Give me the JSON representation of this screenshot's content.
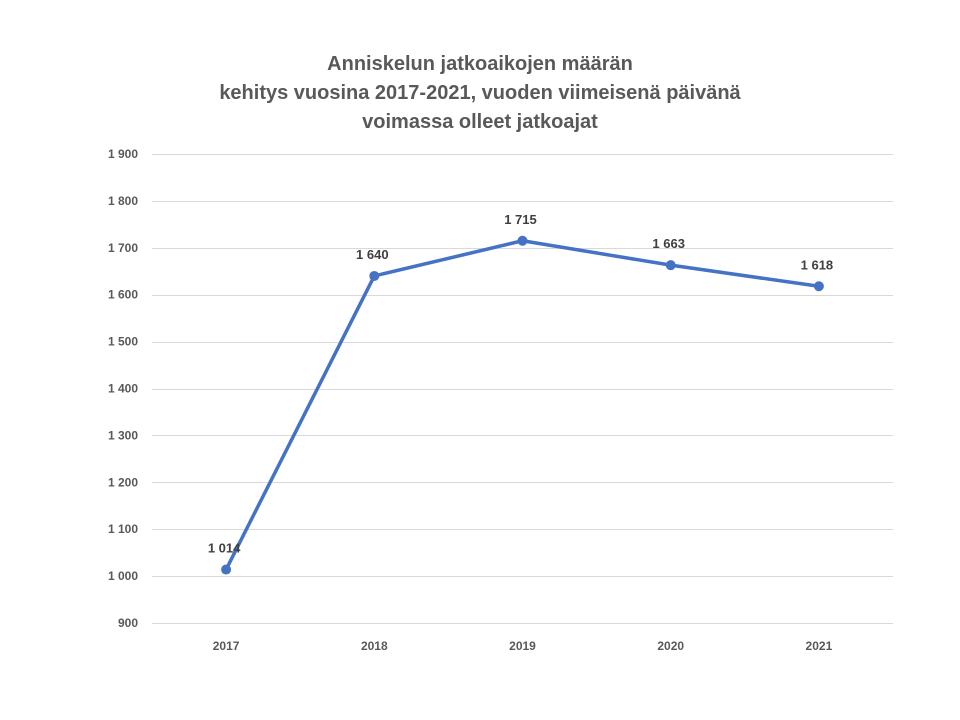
{
  "chart_data": {
    "type": "line",
    "title_lines": [
      "Anniskelun jatkoaikojen määrän",
      "kehitys vuosina 2017-2021, vuoden viimeisenä päivänä",
      "voimassa olleet jatkoajat"
    ],
    "categories": [
      "2017",
      "2018",
      "2019",
      "2020",
      "2021"
    ],
    "values": [
      1014,
      1640,
      1715,
      1663,
      1618
    ],
    "data_labels": [
      "1 014",
      "1 640",
      "1 715",
      "1 663",
      "1 618"
    ],
    "ylim": [
      900,
      1900
    ],
    "yticks": [
      900,
      1000,
      1100,
      1200,
      1300,
      1400,
      1500,
      1600,
      1700,
      1800,
      1900
    ],
    "ytick_labels": [
      "900",
      "1 000",
      "1 100",
      "1 200",
      "1 300",
      "1 400",
      "1 500",
      "1 600",
      "1 700",
      "1 800",
      "1 900"
    ],
    "grid": true,
    "line_color": "#4472C4",
    "grid_color": "#D9D9D9",
    "text_color": "#595959"
  }
}
